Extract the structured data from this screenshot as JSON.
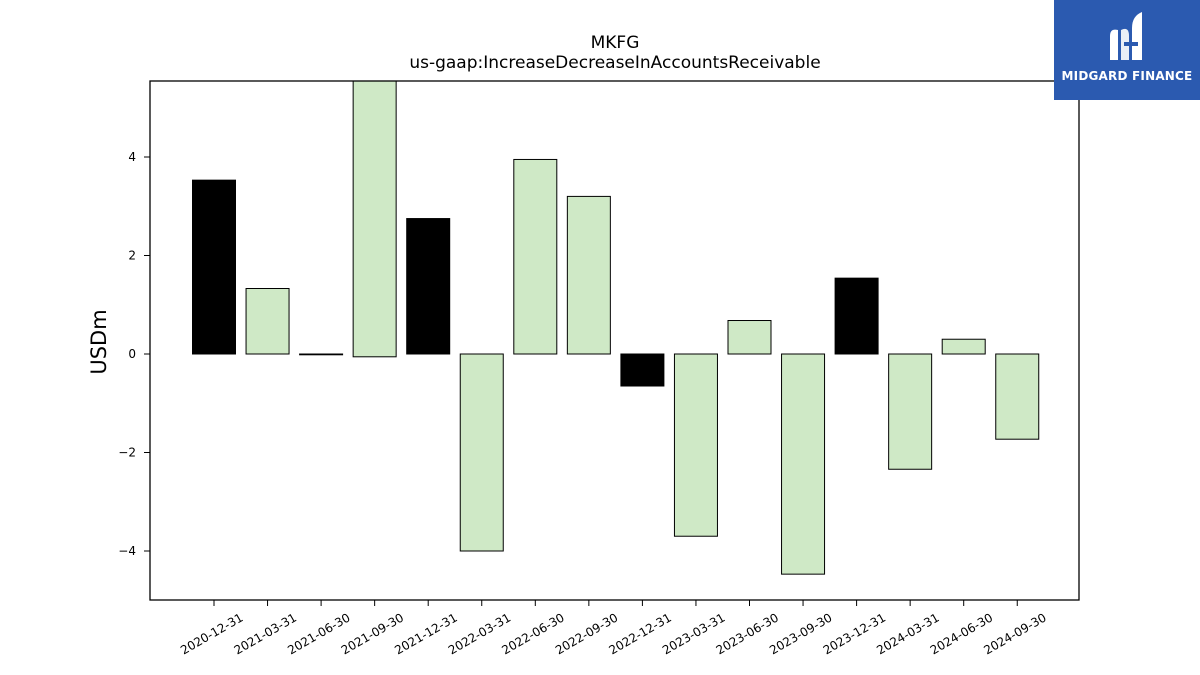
{
  "chart_data": {
    "type": "bar",
    "title": "MKFG",
    "subtitle": "us-gaap:IncreaseDecreaseInAccountsReceivable",
    "xlabel": "",
    "ylabel": "USDm",
    "ylim": [
      -5.0,
      5.6
    ],
    "yticks": [
      -4,
      -2,
      0,
      2,
      4
    ],
    "ytick_labels": [
      "−4",
      "−2",
      "0",
      "2",
      "4"
    ],
    "grid": false,
    "categories": [
      "2020-12-31",
      "2021-03-31",
      "2021-06-30",
      "2021-09-30",
      "2021-12-31",
      "2022-03-31",
      "2022-06-30",
      "2022-09-30",
      "2022-12-31",
      "2023-03-31",
      "2023-06-30",
      "2023-09-30",
      "2023-12-31",
      "2024-03-31",
      "2024-06-30",
      "2024-09-30"
    ],
    "values": [
      3.53,
      1.33,
      0.0,
      5.6,
      2.75,
      -4.0,
      3.95,
      3.2,
      -0.65,
      -3.7,
      0.68,
      -4.47,
      1.54,
      -2.34,
      0.3,
      -1.73
    ],
    "bar_kind": [
      "q4",
      "q",
      "q",
      "q",
      "q4",
      "q",
      "q",
      "q",
      "q4",
      "q",
      "q",
      "q",
      "q4",
      "q",
      "q",
      "q"
    ],
    "colors": {
      "q4": "#000000",
      "q": "#cfe9c6",
      "edge": "#000000"
    }
  },
  "logo": {
    "text": "MIDGARD FINANCE",
    "background": "#2b5ab0"
  }
}
